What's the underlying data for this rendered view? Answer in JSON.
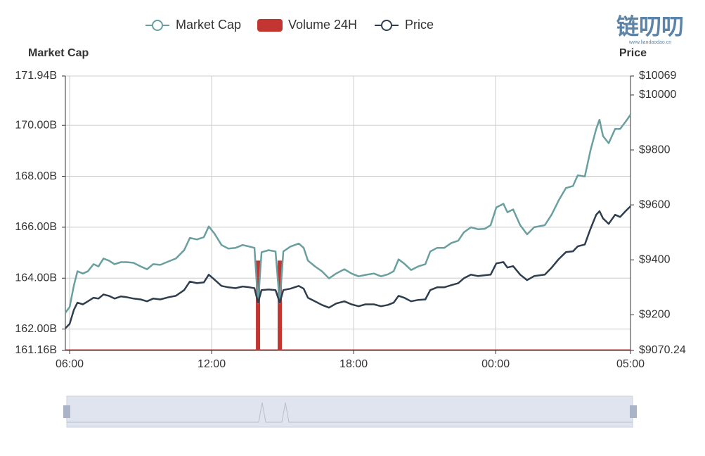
{
  "chart_data": {
    "type": "line",
    "watermark": {
      "title": "链叨叨",
      "subtitle": "www.liandaodao.cn"
    },
    "y_axis_label": "Market Cap",
    "y2_axis_label": "Price",
    "xlim": [
      -0.18,
      23.7
    ],
    "xticks": [
      {
        "value": 0,
        "label": "06:00"
      },
      {
        "value": 6,
        "label": "12:00"
      },
      {
        "value": 12,
        "label": "18:00"
      },
      {
        "value": 18,
        "label": "00:00"
      },
      {
        "value": 23.7,
        "label": "05:00"
      }
    ],
    "ylim": [
      161.16,
      171.94
    ],
    "yticks": [
      {
        "value": 161.16,
        "label": "161.16B"
      },
      {
        "value": 162,
        "label": "162.00B"
      },
      {
        "value": 164,
        "label": "164.00B"
      },
      {
        "value": 166,
        "label": "166.00B"
      },
      {
        "value": 168,
        "label": "168.00B"
      },
      {
        "value": 170,
        "label": "170.00B"
      },
      {
        "value": 171.94,
        "label": "171.94B"
      }
    ],
    "y2lim": [
      9070.24,
      10069
    ],
    "y2ticks": [
      {
        "value": 9070.24,
        "label": "$9070.24"
      },
      {
        "value": 9200,
        "label": "$9200"
      },
      {
        "value": 9400,
        "label": "$9400"
      },
      {
        "value": 9600,
        "label": "$9600"
      },
      {
        "value": 9800,
        "label": "$9800"
      },
      {
        "value": 10000,
        "label": "$10000"
      },
      {
        "value": 10069,
        "label": "$10069"
      }
    ],
    "grid": true,
    "legend": "top",
    "x": [
      -0.18,
      0,
      0.18,
      0.33,
      0.56,
      0.77,
      1.01,
      1.22,
      1.43,
      1.66,
      1.9,
      2.17,
      2.41,
      2.7,
      3.0,
      3.27,
      3.53,
      3.83,
      4.19,
      4.49,
      4.84,
      5.08,
      5.38,
      5.67,
      5.88,
      6.12,
      6.42,
      6.71,
      7.01,
      7.31,
      7.6,
      7.81,
      7.96,
      8.11,
      8.41,
      8.7,
      8.88,
      9.03,
      9.33,
      9.68,
      9.89,
      10.07,
      10.37,
      10.66,
      10.96,
      11.26,
      11.61,
      11.91,
      12.21,
      12.5,
      12.86,
      13.16,
      13.45,
      13.69,
      13.9,
      14.14,
      14.43,
      14.73,
      15.03,
      15.24,
      15.53,
      15.83,
      16.13,
      16.42,
      16.66,
      16.96,
      17.26,
      17.55,
      17.79,
      18.03,
      18.33,
      18.5,
      18.74,
      19.04,
      19.33,
      19.63,
      20.08,
      20.37,
      20.67,
      20.97,
      21.27,
      21.47,
      21.77,
      22.01,
      22.25,
      22.39,
      22.54,
      22.78,
      23.05,
      23.26,
      23.49,
      23.7
    ],
    "series": [
      {
        "name": "Market Cap",
        "type": "line",
        "color": "#6a9fa0",
        "axis": "y",
        "values": [
          162.64,
          162.87,
          163.71,
          164.27,
          164.18,
          164.27,
          164.55,
          164.46,
          164.77,
          164.69,
          164.55,
          164.63,
          164.63,
          164.6,
          164.46,
          164.35,
          164.55,
          164.52,
          164.66,
          164.77,
          165.1,
          165.58,
          165.52,
          165.61,
          166.03,
          165.75,
          165.3,
          165.16,
          165.19,
          165.3,
          165.24,
          165.19,
          163.01,
          165.02,
          165.1,
          165.05,
          163.01,
          165.05,
          165.24,
          165.36,
          165.19,
          164.69,
          164.46,
          164.27,
          163.99,
          164.18,
          164.35,
          164.18,
          164.07,
          164.13,
          164.18,
          164.07,
          164.15,
          164.27,
          164.74,
          164.57,
          164.32,
          164.46,
          164.55,
          165.05,
          165.19,
          165.19,
          165.38,
          165.47,
          165.8,
          166.0,
          165.92,
          165.94,
          166.08,
          166.78,
          166.92,
          166.59,
          166.7,
          166.08,
          165.72,
          166.0,
          166.08,
          166.5,
          167.06,
          167.54,
          167.62,
          168.04,
          167.99,
          169.02,
          169.86,
          170.22,
          169.58,
          169.3,
          169.86,
          169.86,
          170.14,
          170.42
        ]
      },
      {
        "name": "Volume 24H",
        "type": "bar",
        "color": "#c23531",
        "axis": "y",
        "x": [
          7.96,
          8.88
        ],
        "values": [
          164.69,
          164.69
        ]
      },
      {
        "name": "Price",
        "type": "line",
        "color": "#2f3e4e",
        "axis": "y2",
        "values": [
          9151,
          9167,
          9218,
          9244,
          9238,
          9249,
          9262,
          9259,
          9274,
          9269,
          9259,
          9267,
          9264,
          9259,
          9256,
          9249,
          9259,
          9256,
          9264,
          9269,
          9290,
          9321,
          9315,
          9318,
          9346,
          9328,
          9305,
          9300,
          9297,
          9303,
          9300,
          9297,
          9244,
          9290,
          9292,
          9290,
          9244,
          9290,
          9295,
          9305,
          9295,
          9262,
          9249,
          9236,
          9226,
          9241,
          9249,
          9238,
          9231,
          9238,
          9238,
          9231,
          9236,
          9244,
          9269,
          9262,
          9249,
          9254,
          9256,
          9290,
          9300,
          9300,
          9308,
          9315,
          9333,
          9346,
          9341,
          9344,
          9346,
          9387,
          9392,
          9372,
          9377,
          9346,
          9326,
          9341,
          9346,
          9372,
          9403,
          9428,
          9431,
          9449,
          9456,
          9513,
          9564,
          9577,
          9551,
          9531,
          9564,
          9556,
          9577,
          9595
        ]
      }
    ]
  }
}
